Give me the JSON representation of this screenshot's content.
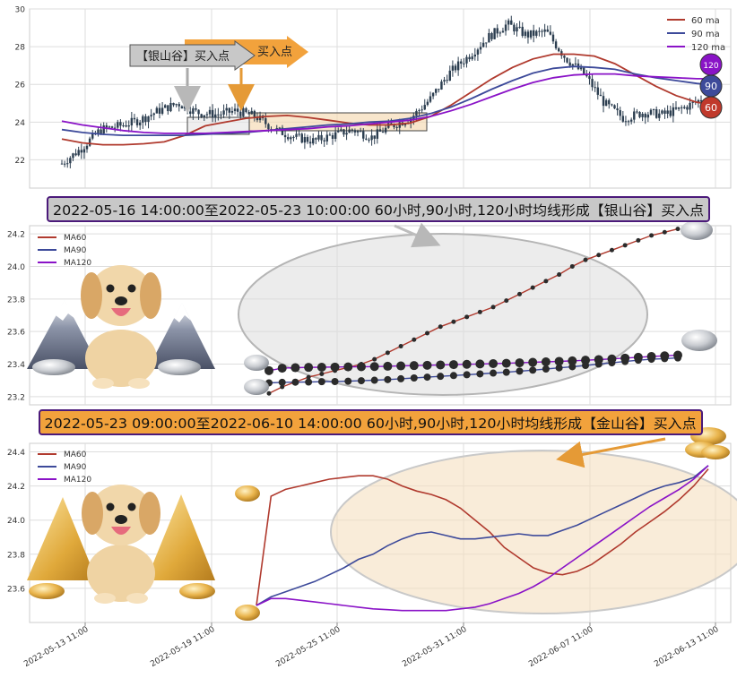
{
  "colors": {
    "ma60": "#b03a2e",
    "ma90": "#3d4a9a",
    "ma120": "#8a13c7",
    "candle": "#2c3e50",
    "silver_box": "#c8c8c8",
    "gold_box": "#f2a23c",
    "banner_border": "#4b1a7a"
  },
  "chart_data": [
    {
      "type": "line",
      "panel": "overview",
      "ylim": [
        20.5,
        30
      ],
      "yticks": [
        22,
        24,
        26,
        28,
        30
      ],
      "grid": true,
      "legend_position": "top-right",
      "series": [
        {
          "name": "60 ma",
          "values": [
            23.1,
            22.9,
            22.8,
            22.8,
            22.85,
            22.95,
            23.3,
            23.8,
            24.0,
            24.2,
            24.3,
            24.35,
            24.25,
            24.1,
            23.95,
            23.85,
            23.85,
            23.95,
            24.3,
            24.9,
            25.6,
            26.3,
            26.9,
            27.35,
            27.6,
            27.6,
            27.5,
            27.1,
            26.5,
            25.9,
            25.4,
            25.05,
            24.9
          ]
        },
        {
          "name": "90 ma",
          "values": [
            23.6,
            23.45,
            23.35,
            23.3,
            23.3,
            23.3,
            23.3,
            23.35,
            23.4,
            23.45,
            23.55,
            23.65,
            23.75,
            23.85,
            23.9,
            24.0,
            24.05,
            24.2,
            24.45,
            24.8,
            25.25,
            25.75,
            26.2,
            26.6,
            26.85,
            26.95,
            26.9,
            26.8,
            26.55,
            26.35,
            26.2,
            26.05,
            25.95
          ]
        },
        {
          "name": "120 ma",
          "values": [
            24.05,
            23.85,
            23.7,
            23.55,
            23.45,
            23.4,
            23.4,
            23.4,
            23.45,
            23.5,
            23.55,
            23.6,
            23.65,
            23.75,
            23.8,
            23.9,
            24.0,
            24.1,
            24.3,
            24.6,
            24.95,
            25.35,
            25.75,
            26.1,
            26.35,
            26.5,
            26.55,
            26.55,
            26.45,
            26.4,
            26.35,
            26.3,
            26.3
          ]
        }
      ],
      "price_path": [
        21.8,
        22.6,
        23.6,
        23.8,
        24.1,
        24.6,
        25.0,
        24.5,
        24.4,
        24.6,
        24.3,
        23.6,
        23.2,
        23.0,
        23.3,
        23.6,
        23.2,
        23.8,
        24.2,
        25.2,
        26.6,
        27.5,
        28.5,
        29.2,
        28.6,
        28.8,
        27.4,
        26.5,
        25.0,
        24.2,
        24.5,
        24.4,
        24.7,
        25.2
      ],
      "annotations": [
        "【银山谷】买入点",
        "买入点"
      ],
      "value_badges": [
        "120",
        "90",
        "60"
      ]
    },
    {
      "type": "line",
      "panel": "silver_valley",
      "ylim": [
        23.15,
        24.25
      ],
      "yticks": [
        23.2,
        23.4,
        23.6,
        23.8,
        24.0,
        24.2
      ],
      "grid": true,
      "legend_position": "top-left",
      "series": [
        {
          "name": "MA60",
          "values": [
            23.22,
            23.26,
            23.29,
            23.32,
            23.34,
            23.36,
            23.38,
            23.4,
            23.43,
            23.47,
            23.51,
            23.55,
            23.59,
            23.63,
            23.66,
            23.69,
            23.72,
            23.75,
            23.79,
            23.83,
            23.87,
            23.91,
            23.95,
            24.0,
            24.04,
            24.07,
            24.1,
            24.13,
            24.16,
            24.19,
            24.21,
            24.23
          ]
        },
        {
          "name": "MA90",
          "values": [
            23.285,
            23.288,
            23.289,
            23.29,
            23.292,
            23.293,
            23.295,
            23.298,
            23.301,
            23.305,
            23.31,
            23.315,
            23.32,
            23.325,
            23.33,
            23.335,
            23.34,
            23.345,
            23.35,
            23.357,
            23.363,
            23.37,
            23.377,
            23.384,
            23.392,
            23.4,
            23.408,
            23.416,
            23.424,
            23.43,
            23.434,
            23.438
          ]
        },
        {
          "name": "MA120",
          "values": [
            23.36,
            23.375,
            23.378,
            23.38,
            23.381,
            23.382,
            23.383,
            23.384,
            23.385,
            23.387,
            23.389,
            23.391,
            23.393,
            23.395,
            23.397,
            23.399,
            23.401,
            23.403,
            23.405,
            23.408,
            23.411,
            23.414,
            23.417,
            23.42,
            23.424,
            23.428,
            23.432,
            23.437,
            23.442,
            23.447,
            23.451,
            23.455
          ]
        }
      ],
      "banner": "2022-05-16 14:00:00至2022-05-23 10:00:00 60小时,90小时,120小时均线形成【银山谷】买入点"
    },
    {
      "type": "line",
      "panel": "golden_valley",
      "ylim": [
        23.4,
        24.45
      ],
      "yticks": [
        23.6,
        23.8,
        24.0,
        24.2,
        24.4
      ],
      "xticks": [
        "2022-05-13 11:00",
        "2022-05-19 11:00",
        "2022-05-25 11:00",
        "2022-05-31 11:00",
        "2022-06-07 11:00",
        "2022-06-13 11:00"
      ],
      "grid": true,
      "legend_position": "top-left",
      "series": [
        {
          "name": "MA60",
          "values": [
            23.5,
            24.14,
            24.18,
            24.2,
            24.22,
            24.24,
            24.25,
            24.26,
            24.26,
            24.24,
            24.2,
            24.17,
            24.15,
            24.12,
            24.07,
            24.0,
            23.93,
            23.84,
            23.78,
            23.72,
            23.69,
            23.68,
            23.7,
            23.74,
            23.8,
            23.86,
            23.93,
            23.99,
            24.05,
            24.12,
            24.2,
            24.3
          ]
        },
        {
          "name": "MA90",
          "values": [
            23.5,
            23.55,
            23.58,
            23.61,
            23.64,
            23.68,
            23.72,
            23.77,
            23.8,
            23.85,
            23.89,
            23.92,
            23.93,
            23.91,
            23.89,
            23.89,
            23.9,
            23.91,
            23.92,
            23.91,
            23.91,
            23.94,
            23.97,
            24.01,
            24.05,
            24.09,
            24.13,
            24.17,
            24.2,
            24.22,
            24.25,
            24.32
          ]
        },
        {
          "name": "MA120",
          "values": [
            23.5,
            23.54,
            23.54,
            23.53,
            23.52,
            23.51,
            23.5,
            23.49,
            23.48,
            23.475,
            23.47,
            23.47,
            23.47,
            23.47,
            23.48,
            23.49,
            23.51,
            23.54,
            23.57,
            23.61,
            23.66,
            23.72,
            23.78,
            23.84,
            23.9,
            23.96,
            24.02,
            24.08,
            24.13,
            24.18,
            24.24,
            24.32
          ]
        }
      ],
      "banner": "2022-05-23 09:00:00至2022-06-10 14:00:00 60小时,90小时,120小时均线形成【金山谷】买入点"
    }
  ]
}
